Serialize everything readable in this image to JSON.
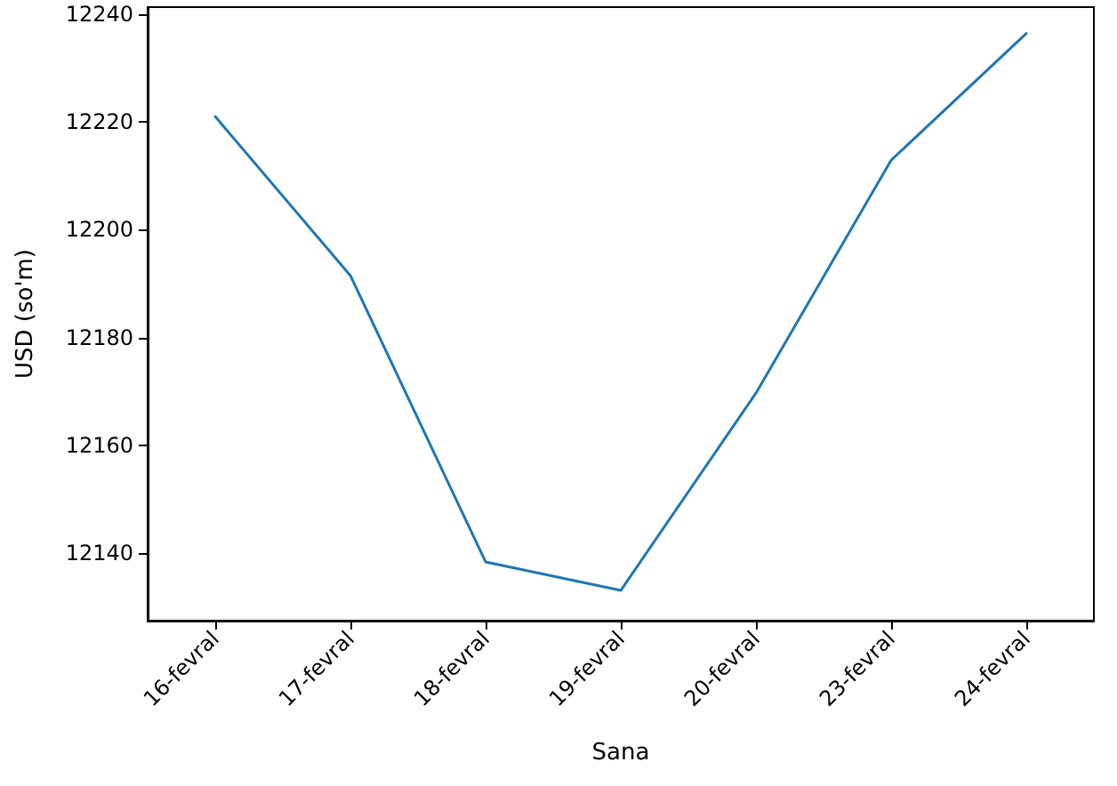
{
  "chart_data": {
    "type": "line",
    "xlabel": "Sana",
    "ylabel": "USD (so'm)",
    "categories": [
      "16-fevral",
      "17-fevral",
      "18-fevral",
      "19-fevral",
      "20-fevral",
      "23-fevral",
      "24-fevral"
    ],
    "series": [
      {
        "color": "#1f77b4",
        "values": [
          12221,
          12191.5,
          12138.4,
          12133.1,
          12169.7,
          12212.9,
          12236.4
        ]
      }
    ],
    "ylim": [
      12127.5,
      12241.3
    ],
    "yticks": [
      12140,
      12160,
      12180,
      12200,
      12220,
      12240
    ],
    "grid": false,
    "marker": "none",
    "line_style": "solid"
  }
}
